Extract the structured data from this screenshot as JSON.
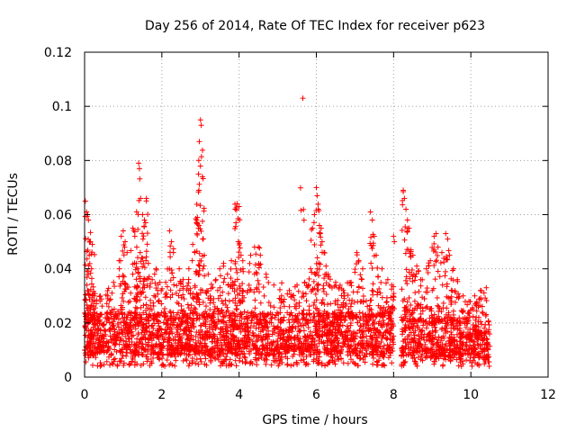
{
  "chart_data": {
    "type": "scatter",
    "title": "Day 256 of 2014, Rate Of TEC Index for receiver p623",
    "xlabel": "GPS time / hours",
    "ylabel": "ROTI / TECUs",
    "xlim": [
      0,
      12
    ],
    "ylim": [
      0,
      0.12
    ],
    "xticks": [
      0,
      2,
      4,
      6,
      8,
      10,
      12
    ],
    "xtick_labels": [
      "0",
      "2",
      "4",
      "6",
      "8",
      "10",
      "12"
    ],
    "yticks": [
      0,
      0.02,
      0.04,
      0.06,
      0.08,
      0.1,
      0.12
    ],
    "ytick_labels": [
      "0",
      "0.02",
      "0.04",
      "0.06",
      "0.08",
      "0.1",
      "0.12"
    ],
    "grid": true,
    "marker": "+",
    "color": "#ff0000",
    "data_range_hours": [
      0,
      10.5
    ],
    "data_gap_hours": [
      8.0,
      8.2
    ],
    "series": [
      {
        "name": "ROTI",
        "points": [
          [
            0.02,
            0.065
          ],
          [
            0.05,
            0.061
          ],
          [
            0.08,
            0.06
          ],
          [
            0.1,
            0.058
          ],
          [
            0.15,
            0.05
          ],
          [
            0.2,
            0.049
          ],
          [
            0.12,
            0.045
          ],
          [
            0.18,
            0.04
          ],
          [
            0.06,
            0.034
          ],
          [
            0.25,
            0.03
          ],
          [
            0.4,
            0.028
          ],
          [
            0.6,
            0.03
          ],
          [
            0.75,
            0.035
          ],
          [
            0.9,
            0.04
          ],
          [
            0.95,
            0.052
          ],
          [
            1.0,
            0.054
          ],
          [
            1.05,
            0.05
          ],
          [
            1.1,
            0.046
          ],
          [
            1.25,
            0.055
          ],
          [
            1.3,
            0.052
          ],
          [
            1.35,
            0.048
          ],
          [
            1.4,
            0.079
          ],
          [
            1.42,
            0.077
          ],
          [
            1.45,
            0.066
          ],
          [
            1.5,
            0.06
          ],
          [
            1.55,
            0.058
          ],
          [
            1.58,
            0.057
          ],
          [
            1.6,
            0.066
          ],
          [
            1.48,
            0.044
          ],
          [
            1.38,
            0.04
          ],
          [
            1.65,
            0.042
          ],
          [
            1.75,
            0.036
          ],
          [
            1.85,
            0.04
          ],
          [
            1.95,
            0.035
          ],
          [
            2.1,
            0.035
          ],
          [
            2.2,
            0.054
          ],
          [
            2.25,
            0.05
          ],
          [
            2.3,
            0.046
          ],
          [
            2.45,
            0.04
          ],
          [
            2.55,
            0.036
          ],
          [
            2.7,
            0.04
          ],
          [
            2.8,
            0.049
          ],
          [
            2.85,
            0.046
          ],
          [
            2.9,
            0.058
          ],
          [
            2.92,
            0.059
          ],
          [
            2.95,
            0.075
          ],
          [
            2.97,
            0.087
          ],
          [
            3.0,
            0.095
          ],
          [
            3.02,
            0.093
          ],
          [
            3.05,
            0.074
          ],
          [
            2.96,
            0.069
          ],
          [
            3.1,
            0.045
          ],
          [
            3.2,
            0.038
          ],
          [
            3.4,
            0.036
          ],
          [
            3.5,
            0.04
          ],
          [
            3.6,
            0.042
          ],
          [
            3.7,
            0.038
          ],
          [
            3.8,
            0.043
          ],
          [
            3.9,
            0.062
          ],
          [
            3.95,
            0.064
          ],
          [
            4.0,
            0.063
          ],
          [
            3.92,
            0.057
          ],
          [
            3.98,
            0.05
          ],
          [
            4.05,
            0.045
          ],
          [
            4.1,
            0.04
          ],
          [
            4.3,
            0.045
          ],
          [
            4.4,
            0.048
          ],
          [
            4.5,
            0.048
          ],
          [
            4.55,
            0.045
          ],
          [
            4.7,
            0.038
          ],
          [
            4.9,
            0.034
          ],
          [
            5.1,
            0.03
          ],
          [
            5.3,
            0.032
          ],
          [
            5.5,
            0.034
          ],
          [
            5.65,
            0.103
          ],
          [
            5.7,
            0.035
          ],
          [
            5.85,
            0.04
          ],
          [
            5.9,
            0.055
          ],
          [
            5.95,
            0.06
          ],
          [
            6.0,
            0.07
          ],
          [
            6.02,
            0.067
          ],
          [
            6.05,
            0.062
          ],
          [
            6.08,
            0.056
          ],
          [
            6.1,
            0.053
          ],
          [
            6.15,
            0.05
          ],
          [
            6.2,
            0.046
          ],
          [
            6.25,
            0.041
          ],
          [
            6.3,
            0.038
          ],
          [
            6.5,
            0.035
          ],
          [
            6.7,
            0.032
          ],
          [
            6.9,
            0.035
          ],
          [
            7.05,
            0.046
          ],
          [
            7.1,
            0.043
          ],
          [
            7.2,
            0.04
          ],
          [
            7.4,
            0.061
          ],
          [
            7.45,
            0.058
          ],
          [
            7.5,
            0.052
          ],
          [
            7.55,
            0.045
          ],
          [
            7.7,
            0.04
          ],
          [
            7.85,
            0.036
          ],
          [
            7.95,
            0.034
          ],
          [
            8.0,
            0.052
          ],
          [
            8.02,
            0.05
          ],
          [
            8.25,
            0.069
          ],
          [
            8.28,
            0.066
          ],
          [
            8.32,
            0.062
          ],
          [
            8.36,
            0.058
          ],
          [
            8.4,
            0.055
          ],
          [
            8.45,
            0.047
          ],
          [
            8.5,
            0.045
          ],
          [
            8.6,
            0.041
          ],
          [
            8.7,
            0.036
          ],
          [
            8.85,
            0.04
          ],
          [
            8.95,
            0.043
          ],
          [
            9.05,
            0.052
          ],
          [
            9.1,
            0.053
          ],
          [
            9.15,
            0.048
          ],
          [
            9.25,
            0.046
          ],
          [
            9.35,
            0.053
          ],
          [
            9.4,
            0.051
          ],
          [
            9.45,
            0.045
          ],
          [
            9.55,
            0.04
          ],
          [
            9.65,
            0.036
          ],
          [
            9.8,
            0.03
          ],
          [
            9.95,
            0.028
          ],
          [
            10.1,
            0.03
          ],
          [
            10.25,
            0.032
          ],
          [
            10.4,
            0.033
          ]
        ],
        "dense_band": [
          {
            "x_start": 0.0,
            "x_end": 8.0,
            "y_min": 0.004,
            "y_typical_low": 0.008,
            "y_typical_high": 0.024,
            "y_max_common": 0.035
          },
          {
            "x_start": 8.2,
            "x_end": 10.5,
            "y_min": 0.004,
            "y_typical_low": 0.007,
            "y_typical_high": 0.022,
            "y_max_common": 0.03
          }
        ]
      }
    ]
  }
}
